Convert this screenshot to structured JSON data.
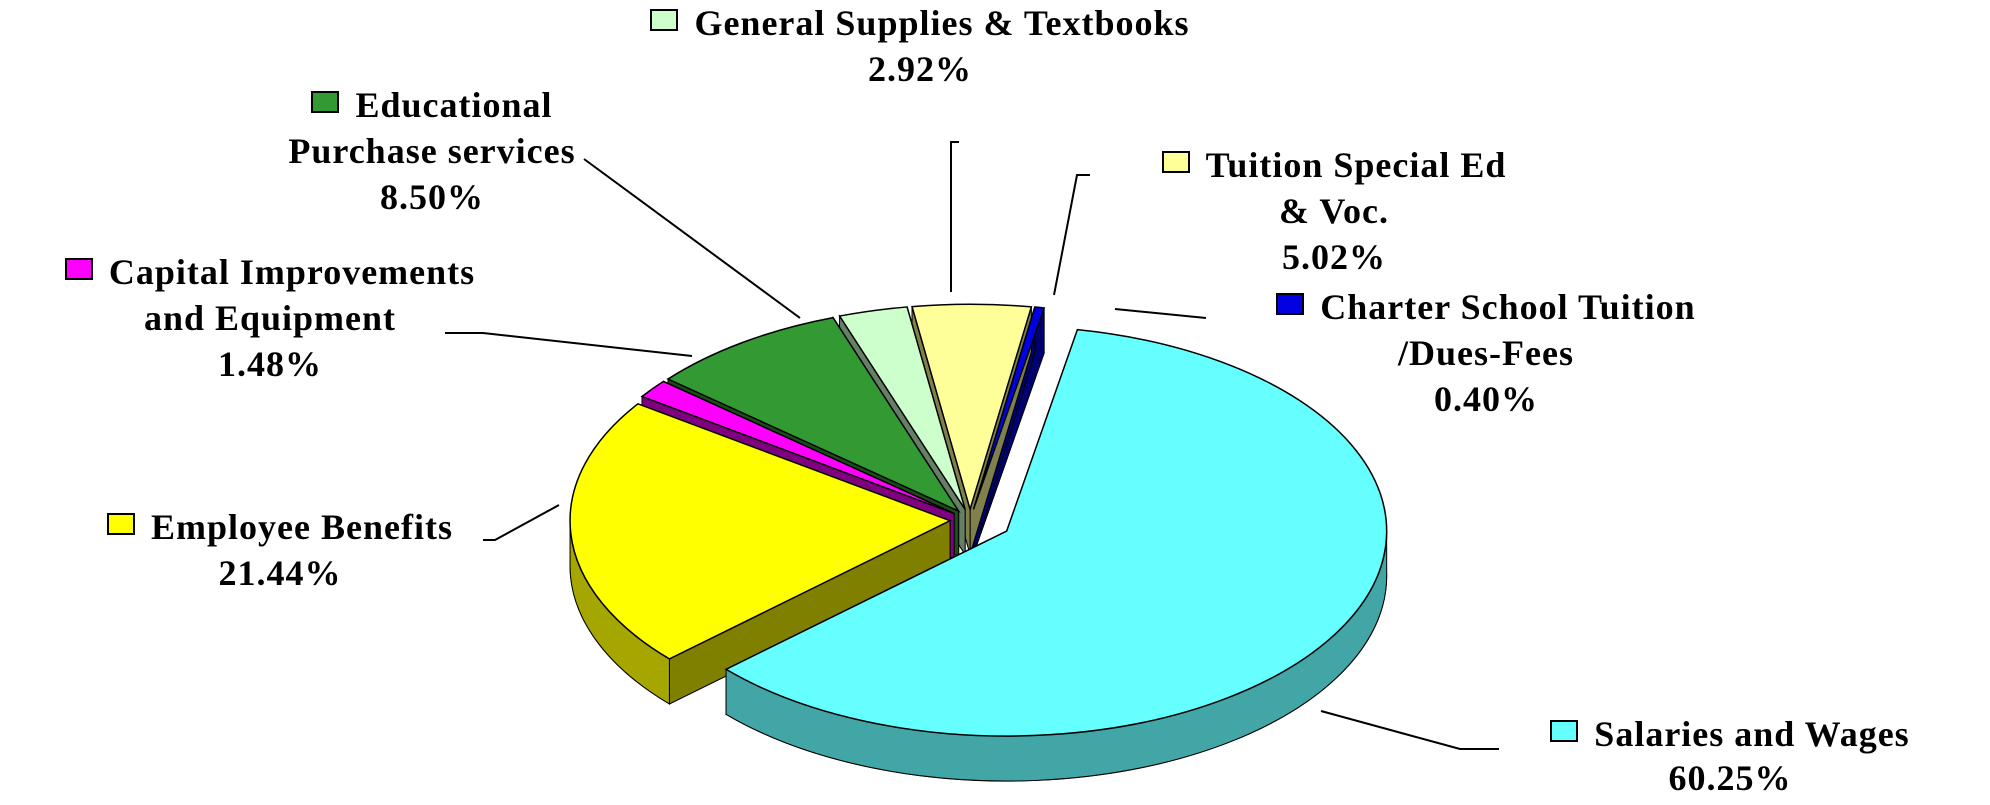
{
  "chart_data": {
    "type": "pie",
    "categories": [
      "Salaries and Wages",
      "Charter School Tuition /Dues-Fees",
      "Tuition Special Ed & Voc.",
      "General Supplies & Textbooks",
      "Educational Purchase services",
      "Capital Improvements and Equipment",
      "Employee Benefits"
    ],
    "values": [
      60.25,
      0.4,
      5.02,
      2.92,
      8.5,
      1.48,
      21.44
    ],
    "value_labels": [
      "60.25%",
      "0.40%",
      "5.02%",
      "2.92%",
      "8.50%",
      "1.48%",
      "21.44%"
    ],
    "colors": [
      "#66ffff",
      "#0000e0",
      "#ffff99",
      "#ccffcc",
      "#339933",
      "#ff00ff",
      "#ffff00"
    ]
  }
}
